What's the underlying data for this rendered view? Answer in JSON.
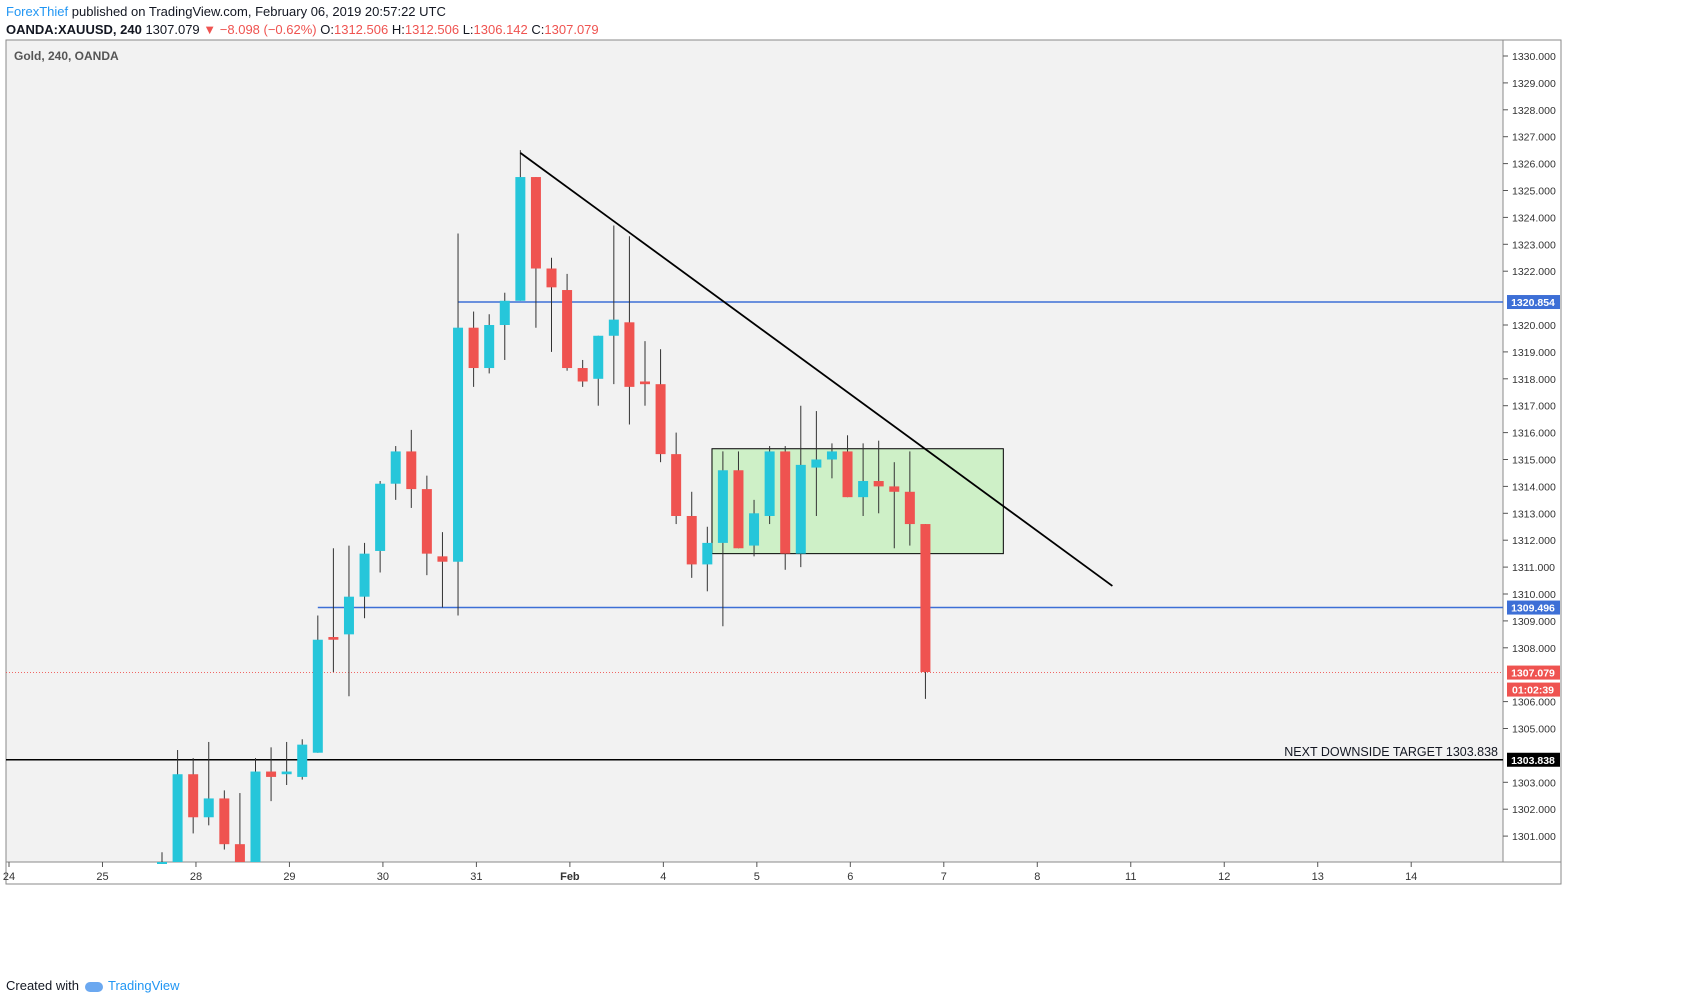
{
  "header": {
    "author": "ForexThief",
    "published": " published on TradingView.com, February 06, 2019 20:57:22 UTC",
    "symbol": "OANDA:XAUUSD, 240",
    "last": "1307.079",
    "change": "▼ −8.098 (−0.62%)",
    "open_label": "O:",
    "open": "1312.506",
    "high_label": "H:",
    "high": "1312.506",
    "low_label": "L:",
    "low": "1306.142",
    "close_label": "C:",
    "close": "1307.079"
  },
  "footer": {
    "created": "Created with",
    "brand": "TradingView"
  },
  "colors": {
    "up": "#26c6da",
    "down": "#ef5350",
    "hline": "#3d6fd6",
    "zone": "#c8f0c0",
    "bg": "#f2f2f2"
  },
  "chart_data": {
    "type": "candlestick",
    "title": "Gold, 240, OANDA",
    "ylim": [
      1300,
      1330.5
    ],
    "y_ticks": [
      1300,
      1301,
      1302,
      1303,
      1305,
      1306,
      1308,
      1309,
      1310,
      1311,
      1312,
      1313,
      1314,
      1315,
      1316,
      1317,
      1318,
      1319,
      1320,
      1322,
      1323,
      1324,
      1325,
      1326,
      1327,
      1328,
      1329,
      1330
    ],
    "x_ticks": [
      {
        "label": "24",
        "pos": 0
      },
      {
        "label": "25",
        "pos": 6
      },
      {
        "label": "28",
        "pos": 12
      },
      {
        "label": "29",
        "pos": 18
      },
      {
        "label": "30",
        "pos": 24
      },
      {
        "label": "31",
        "pos": 30
      },
      {
        "label": "Feb",
        "pos": 36
      },
      {
        "label": "4",
        "pos": 42
      },
      {
        "label": "5",
        "pos": 48
      },
      {
        "label": "6",
        "pos": 54
      },
      {
        "label": "7",
        "pos": 60
      },
      {
        "label": "8",
        "pos": 66
      },
      {
        "label": "11",
        "pos": 72
      },
      {
        "label": "12",
        "pos": 78
      },
      {
        "label": "13",
        "pos": 84
      },
      {
        "label": "14",
        "pos": 90
      }
    ],
    "candles": [
      {
        "t": 9.5,
        "o": 1299.8,
        "h": 1300.4,
        "l": 1299.8,
        "c": 1299.9
      },
      {
        "t": 10.5,
        "o": 1300,
        "h": 1304.2,
        "l": 1300,
        "c": 1303.3
      },
      {
        "t": 11.5,
        "o": 1303.3,
        "h": 1303.9,
        "l": 1301.1,
        "c": 1301.7
      },
      {
        "t": 12.5,
        "o": 1301.7,
        "h": 1304.5,
        "l": 1301.4,
        "c": 1302.4
      },
      {
        "t": 13.5,
        "o": 1302.4,
        "h": 1302.7,
        "l": 1300.5,
        "c": 1300.7
      },
      {
        "t": 14.5,
        "o": 1300.7,
        "h": 1302.6,
        "l": 1299.7,
        "c": 1299.8
      },
      {
        "t": 15.5,
        "o": 1299.8,
        "h": 1303.9,
        "l": 1299.8,
        "c": 1303.4
      },
      {
        "t": 16.5,
        "o": 1303.4,
        "h": 1304.3,
        "l": 1302.3,
        "c": 1303.2
      },
      {
        "t": 17.5,
        "o": 1303.3,
        "h": 1304.5,
        "l": 1302.9,
        "c": 1303.4
      },
      {
        "t": 18.5,
        "o": 1303.2,
        "h": 1304.6,
        "l": 1303.1,
        "c": 1304.4
      },
      {
        "t": 19.5,
        "o": 1304.1,
        "h": 1309.2,
        "l": 1304.1,
        "c": 1308.3
      },
      {
        "t": 20.5,
        "o": 1308.4,
        "h": 1311.7,
        "l": 1307.1,
        "c": 1308.3
      },
      {
        "t": 21.5,
        "o": 1308.5,
        "h": 1311.8,
        "l": 1306.2,
        "c": 1309.9
      },
      {
        "t": 22.5,
        "o": 1309.9,
        "h": 1311.9,
        "l": 1309.1,
        "c": 1311.5
      },
      {
        "t": 23.5,
        "o": 1311.6,
        "h": 1314.2,
        "l": 1310.8,
        "c": 1314.1
      },
      {
        "t": 24.5,
        "o": 1314.1,
        "h": 1315.5,
        "l": 1313.5,
        "c": 1315.3
      },
      {
        "t": 25.5,
        "o": 1315.3,
        "h": 1316.1,
        "l": 1313.2,
        "c": 1313.9
      },
      {
        "t": 26.5,
        "o": 1313.9,
        "h": 1314.4,
        "l": 1310.7,
        "c": 1311.5
      },
      {
        "t": 27.5,
        "o": 1311.4,
        "h": 1312.3,
        "l": 1309.5,
        "c": 1311.2
      },
      {
        "t": 28.5,
        "o": 1311.2,
        "h": 1323.4,
        "l": 1309.2,
        "c": 1319.9
      },
      {
        "t": 29.5,
        "o": 1319.9,
        "h": 1320.5,
        "l": 1317.7,
        "c": 1318.4
      },
      {
        "t": 30.5,
        "o": 1318.4,
        "h": 1320.4,
        "l": 1318.2,
        "c": 1320.0
      },
      {
        "t": 31.5,
        "o": 1320.0,
        "h": 1321.2,
        "l": 1318.7,
        "c": 1320.9
      },
      {
        "t": 32.5,
        "o": 1320.9,
        "h": 1326.5,
        "l": 1320.9,
        "c": 1325.5
      },
      {
        "t": 33.5,
        "o": 1325.5,
        "h": 1325.5,
        "l": 1319.9,
        "c": 1322.1
      },
      {
        "t": 34.5,
        "o": 1322.1,
        "h": 1322.5,
        "l": 1319.0,
        "c": 1321.4
      },
      {
        "t": 35.5,
        "o": 1321.3,
        "h": 1321.9,
        "l": 1318.3,
        "c": 1318.4
      },
      {
        "t": 36.5,
        "o": 1318.4,
        "h": 1318.7,
        "l": 1317.7,
        "c": 1317.9
      },
      {
        "t": 37.5,
        "o": 1318.0,
        "h": 1319.6,
        "l": 1317.0,
        "c": 1319.6
      },
      {
        "t": 38.5,
        "o": 1319.6,
        "h": 1323.7,
        "l": 1317.8,
        "c": 1320.2
      },
      {
        "t": 39.5,
        "o": 1320.1,
        "h": 1323.3,
        "l": 1316.3,
        "c": 1317.7
      },
      {
        "t": 40.5,
        "o": 1317.9,
        "h": 1319.4,
        "l": 1317.0,
        "c": 1317.8
      },
      {
        "t": 41.5,
        "o": 1317.8,
        "h": 1319.1,
        "l": 1314.9,
        "c": 1315.2
      },
      {
        "t": 42.5,
        "o": 1315.2,
        "h": 1316.0,
        "l": 1312.6,
        "c": 1312.9
      },
      {
        "t": 43.5,
        "o": 1312.9,
        "h": 1313.8,
        "l": 1310.6,
        "c": 1311.1
      },
      {
        "t": 44.5,
        "o": 1311.1,
        "h": 1312.5,
        "l": 1310.1,
        "c": 1311.9
      },
      {
        "t": 45.5,
        "o": 1311.9,
        "h": 1315.3,
        "l": 1308.8,
        "c": 1314.6
      },
      {
        "t": 46.5,
        "o": 1314.6,
        "h": 1315.3,
        "l": 1311.7,
        "c": 1311.7
      },
      {
        "t": 47.5,
        "o": 1311.8,
        "h": 1313.5,
        "l": 1311.4,
        "c": 1313.0
      },
      {
        "t": 48.5,
        "o": 1312.9,
        "h": 1315.5,
        "l": 1312.6,
        "c": 1315.3
      },
      {
        "t": 49.5,
        "o": 1315.3,
        "h": 1315.5,
        "l": 1310.9,
        "c": 1311.5
      },
      {
        "t": 50.5,
        "o": 1311.5,
        "h": 1317.0,
        "l": 1311.0,
        "c": 1314.8
      },
      {
        "t": 51.5,
        "o": 1314.7,
        "h": 1316.8,
        "l": 1312.9,
        "c": 1315.0
      },
      {
        "t": 52.5,
        "o": 1315.0,
        "h": 1315.6,
        "l": 1314.3,
        "c": 1315.3
      },
      {
        "t": 53.5,
        "o": 1315.3,
        "h": 1315.9,
        "l": 1313.6,
        "c": 1313.6
      },
      {
        "t": 54.5,
        "o": 1313.6,
        "h": 1315.6,
        "l": 1312.9,
        "c": 1314.2
      },
      {
        "t": 55.5,
        "o": 1314.2,
        "h": 1315.7,
        "l": 1313.0,
        "c": 1314.0
      },
      {
        "t": 56.5,
        "o": 1314.0,
        "h": 1314.9,
        "l": 1311.7,
        "c": 1313.8
      },
      {
        "t": 57.5,
        "o": 1313.8,
        "h": 1315.3,
        "l": 1311.8,
        "c": 1312.6
      },
      {
        "t": 58.5,
        "o": 1312.6,
        "h": 1312.6,
        "l": 1306.1,
        "c": 1307.1
      }
    ],
    "horizontal_lines": [
      {
        "price": 1320.854,
        "label": "1320.854",
        "color": "#3d6fd6",
        "start": 28.5
      },
      {
        "price": 1309.496,
        "label": "1309.496",
        "color": "#3d6fd6",
        "start": 19.5
      },
      {
        "price": 1303.838,
        "label": "1303.838",
        "color": "#000000",
        "start": 0
      }
    ],
    "last_price": {
      "price": 1307.079,
      "label": "1307.079",
      "countdown": "01:02:39"
    },
    "trendline": {
      "t1": 32.5,
      "p1": 1326.4,
      "t2": 70.5,
      "p2": 1310.3
    },
    "zone": {
      "t1": 44.8,
      "t2": 63.5,
      "p1": 1315.4,
      "p2": 1311.5
    },
    "annotation": "NEXT DOWNSIDE TARGET 1303.838"
  }
}
